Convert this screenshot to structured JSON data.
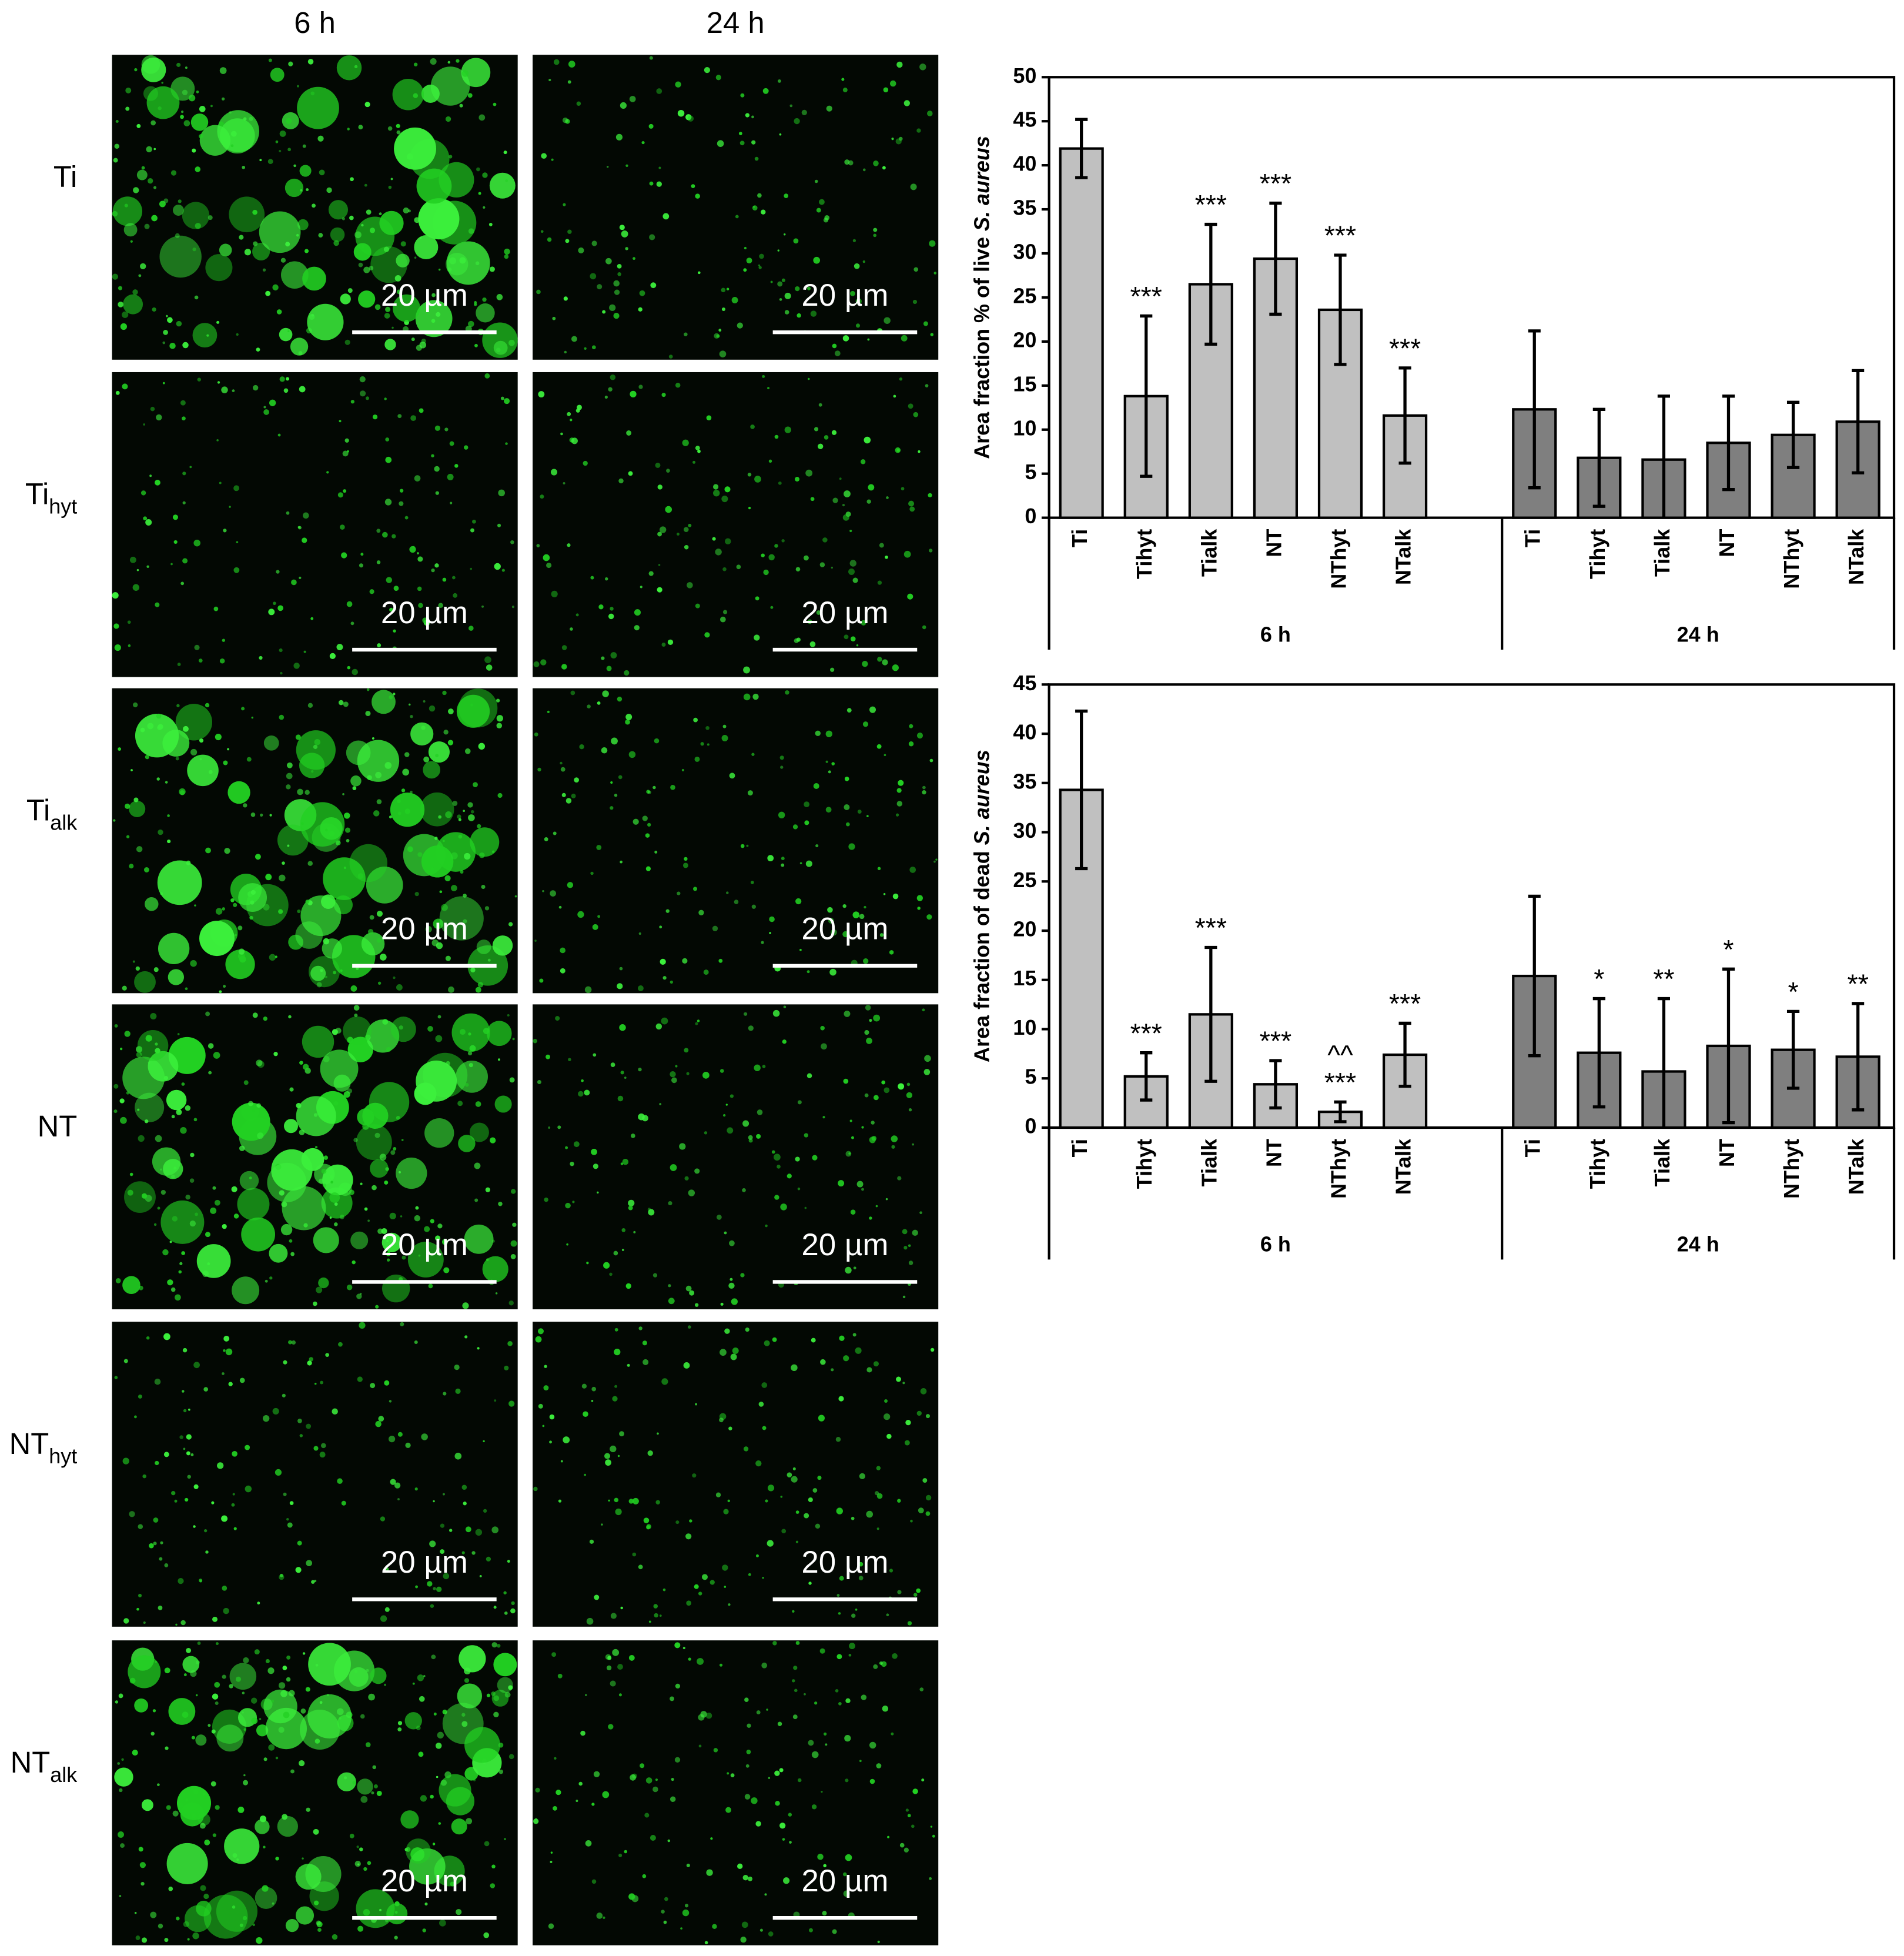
{
  "images": {
    "columns": [
      "6 h",
      "24 h"
    ],
    "rows": [
      {
        "label": "Ti"
      },
      {
        "label": "Ti",
        "sub": "hyt"
      },
      {
        "label": "Ti",
        "sub": "alk"
      },
      {
        "label": "NT"
      },
      {
        "label": "NT",
        "sub": "hyt"
      },
      {
        "label": "NT",
        "sub": "alk"
      }
    ],
    "scale_bar": "20 µm"
  },
  "chart_data": [
    {
      "type": "bar",
      "ylabel": "Area fraction % of live",
      "ylabel_species": "S. aureus",
      "categories": [
        "Ti",
        "Tihyt",
        "Tialk",
        "NT",
        "NThyt",
        "NTalk"
      ],
      "series": [
        {
          "name": "6 h",
          "color": "#c0c0c0",
          "values": [
            41.9,
            13.8,
            26.5,
            29.4,
            23.6,
            11.6
          ],
          "errors": [
            3.3,
            9.1,
            6.8,
            6.3,
            6.2,
            5.4
          ],
          "annotations": [
            null,
            "***",
            "***",
            "***",
            "***",
            "***"
          ]
        },
        {
          "name": "24 h",
          "color": "#7f7f7f",
          "values": [
            12.3,
            6.8,
            6.6,
            8.5,
            9.4,
            10.9
          ],
          "errors": [
            8.9,
            5.5,
            7.2,
            5.3,
            3.7,
            5.8
          ]
        }
      ],
      "ylim": [
        0,
        50
      ],
      "yticks": [
        0,
        5,
        10,
        15,
        20,
        25,
        30,
        35,
        40,
        45,
        50
      ]
    },
    {
      "type": "bar",
      "ylabel": "Area fraction of dead",
      "ylabel_species": "S. aureus",
      "categories": [
        "Ti",
        "Tihyt",
        "Tialk",
        "NT",
        "NThyt",
        "NTalk"
      ],
      "series": [
        {
          "name": "6 h",
          "color": "#c0c0c0",
          "values": [
            34.3,
            5.2,
            11.5,
            4.4,
            1.6,
            7.4
          ],
          "errors": [
            8.0,
            2.4,
            6.8,
            2.4,
            1.0,
            3.2
          ],
          "annotations": [
            null,
            "***",
            "***",
            "***",
            "***",
            "***"
          ],
          "annotations_top": [
            null,
            null,
            null,
            null,
            "^^",
            null
          ]
        },
        {
          "name": "24 h",
          "color": "#7f7f7f",
          "values": [
            15.4,
            7.6,
            5.7,
            8.3,
            7.9,
            7.2
          ],
          "errors": [
            8.1,
            5.5,
            7.4,
            7.8,
            3.9,
            5.4
          ],
          "annotations": [
            null,
            "*",
            "**",
            "*",
            "*",
            "**"
          ]
        }
      ],
      "ylim": [
        0,
        45
      ],
      "yticks": [
        0,
        5,
        10,
        15,
        20,
        25,
        30,
        35,
        40,
        45
      ]
    }
  ]
}
